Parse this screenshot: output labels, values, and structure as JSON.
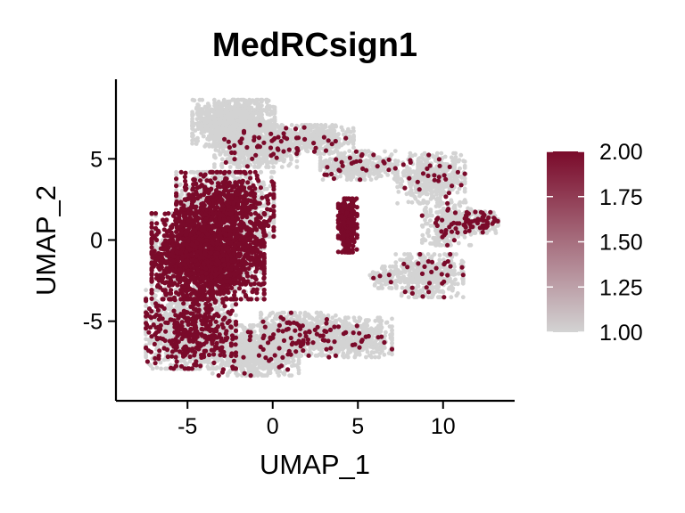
{
  "chart_data": {
    "type": "scatter",
    "title": "MedRCsign1",
    "xlabel": "UMAP_1",
    "ylabel": "UMAP_2",
    "xlim": [
      -9.2,
      14.2
    ],
    "ylim": [
      -9.9,
      9.9
    ],
    "x_ticks": [
      -5,
      0,
      5,
      10
    ],
    "x_tick_labels": [
      "-5",
      "0",
      "5",
      "10"
    ],
    "y_ticks": [
      -5,
      0,
      5
    ],
    "y_tick_labels": [
      "-5",
      "0",
      "5"
    ],
    "grid": false,
    "legend_position": "right",
    "colorbar": {
      "min": 1.0,
      "max": 2.0,
      "ticks": [
        1.0,
        1.25,
        1.5,
        1.75,
        2.0
      ],
      "tick_labels": [
        "1.00",
        "1.25",
        "1.50",
        "1.75",
        "2.00"
      ],
      "low_color": "#d3d3d3",
      "high_color": "#7a0a2a"
    },
    "colors": {
      "low": "#d3d3d3",
      "high": "#7a0a2a"
    },
    "regions": [
      {
        "name": "top-cluster",
        "cx": -2.3,
        "cy": 7.2,
        "rx": 2.2,
        "ry": 1.3,
        "n": 1100,
        "high_frac": 0.0
      },
      {
        "name": "top-neck",
        "cx": -1.0,
        "cy": 5.6,
        "rx": 2.2,
        "ry": 1.0,
        "n": 600,
        "high_frac": 0.04
      },
      {
        "name": "upper-arm",
        "cx": 2.0,
        "cy": 6.2,
        "rx": 2.5,
        "ry": 0.8,
        "n": 500,
        "high_frac": 0.03
      },
      {
        "name": "upper-right-bridge",
        "cx": 5.0,
        "cy": 4.6,
        "rx": 2.0,
        "ry": 0.8,
        "n": 350,
        "high_frac": 0.08
      },
      {
        "name": "mid-left-upper",
        "cx": -2.8,
        "cy": 2.2,
        "rx": 2.6,
        "ry": 1.8,
        "n": 1500,
        "high_frac": 0.4
      },
      {
        "name": "mid-left-core",
        "cx": -3.8,
        "cy": -1.0,
        "rx": 3.0,
        "ry": 2.4,
        "n": 2600,
        "high_frac": 0.62
      },
      {
        "name": "lower-left",
        "cx": -4.8,
        "cy": -5.5,
        "rx": 2.4,
        "ry": 2.2,
        "n": 1400,
        "high_frac": 0.25
      },
      {
        "name": "bottom-tail",
        "cx": -1.0,
        "cy": -6.8,
        "rx": 2.3,
        "ry": 1.4,
        "n": 900,
        "high_frac": 0.05
      },
      {
        "name": "bottom-center",
        "cx": 1.5,
        "cy": -5.8,
        "rx": 2.0,
        "ry": 1.2,
        "n": 700,
        "high_frac": 0.08
      },
      {
        "name": "bottom-right",
        "cx": 4.8,
        "cy": -6.0,
        "rx": 2.0,
        "ry": 1.1,
        "n": 500,
        "high_frac": 0.05
      },
      {
        "name": "mid-right-spike",
        "cx": 4.4,
        "cy": 0.9,
        "rx": 0.5,
        "ry": 1.5,
        "n": 350,
        "high_frac": 0.9
      },
      {
        "name": "mid-right-small",
        "cx": 6.7,
        "cy": -2.3,
        "rx": 0.9,
        "ry": 0.6,
        "n": 100,
        "high_frac": 0.05
      },
      {
        "name": "right-upper",
        "cx": 9.3,
        "cy": 3.8,
        "rx": 1.8,
        "ry": 1.4,
        "n": 450,
        "high_frac": 0.06
      },
      {
        "name": "right-mid",
        "cx": 10.2,
        "cy": 1.0,
        "rx": 1.3,
        "ry": 1.2,
        "n": 300,
        "high_frac": 0.06
      },
      {
        "name": "right-arm",
        "cx": 11.8,
        "cy": 1.1,
        "rx": 1.3,
        "ry": 0.6,
        "n": 250,
        "high_frac": 0.22
      },
      {
        "name": "right-lower",
        "cx": 9.2,
        "cy": -2.2,
        "rx": 1.8,
        "ry": 1.2,
        "n": 450,
        "high_frac": 0.05
      }
    ]
  }
}
